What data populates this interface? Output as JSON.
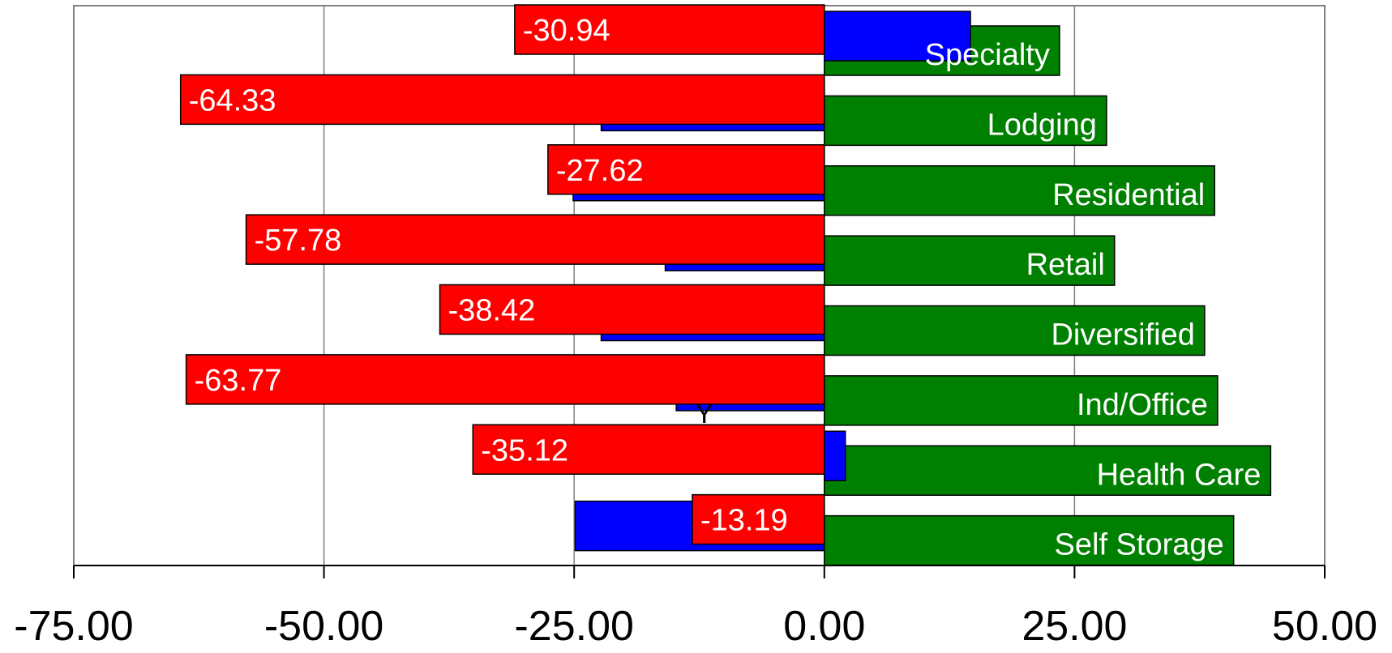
{
  "chart_data": {
    "type": "bar",
    "orientation": "horizontal",
    "categories": [
      "Specialty",
      "Lodging",
      "Residential",
      "Retail",
      "Diversified",
      "Ind/Office",
      "Health Care",
      "Self Storage"
    ],
    "series": [
      {
        "color": "#008000",
        "values": [
          23.5,
          28.2,
          39.0,
          29.0,
          38.0,
          39.3,
          44.6,
          40.9
        ]
      },
      {
        "color": "#0000ff",
        "values": [
          14.6,
          -22.3,
          -25.1,
          -15.9,
          -22.3,
          -14.8,
          2.1,
          -24.9
        ]
      },
      {
        "color": "#ff0000",
        "values": [
          -30.94,
          -64.33,
          -27.62,
          -57.78,
          -38.42,
          -63.77,
          -35.12,
          -13.19
        ]
      }
    ],
    "red_labels": [
      "-30.94",
      "-64.33",
      "-27.62",
      "-57.78",
      "-38.42",
      "-63.77",
      "-35.12",
      "-13.19"
    ],
    "x_ticks": [
      "-75.00",
      "-50.00",
      "-25.00",
      "0.00",
      "25.00",
      "50.00"
    ],
    "xlim": [
      -75,
      50
    ],
    "grid": true,
    "annotation": "Y"
  }
}
